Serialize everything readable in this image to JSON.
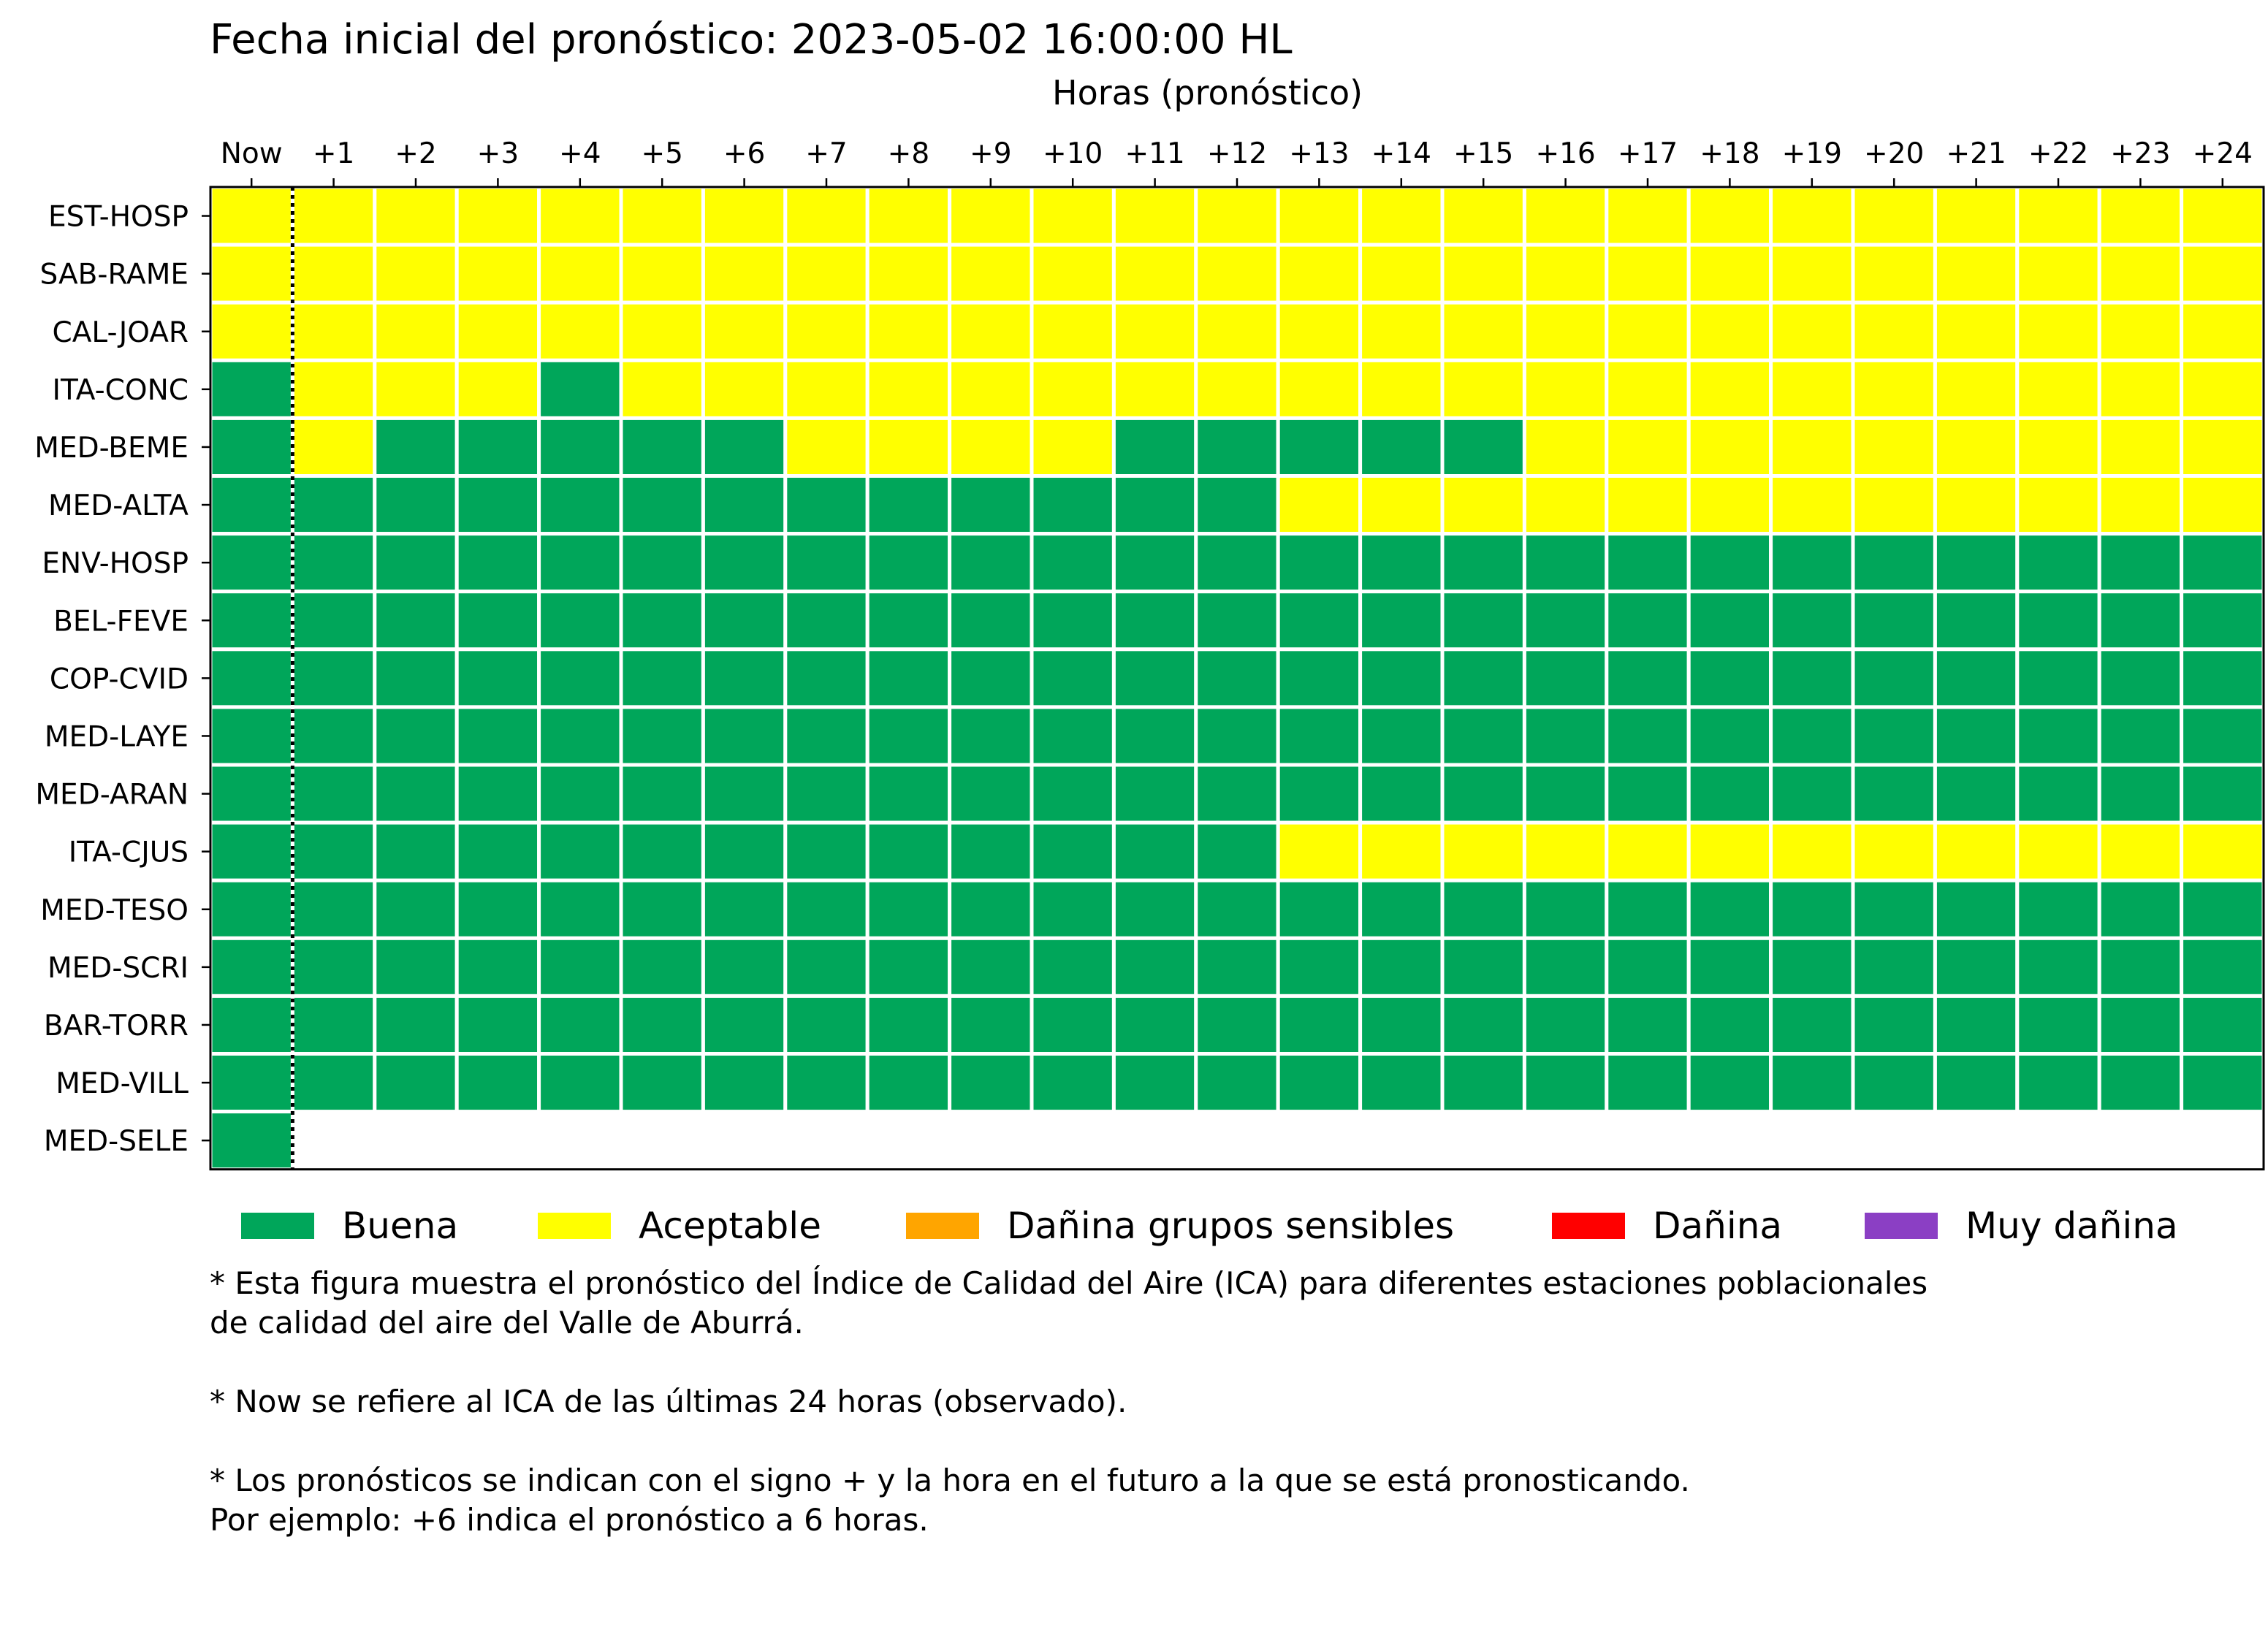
{
  "header": {
    "title": "Fecha inicial del pronóstico: 2023-05-02 16:00:00 HL",
    "xlabel": "Horas (pronóstico)"
  },
  "colors": {
    "Buena": "#00a65a",
    "Aceptable": "#ffff00",
    "Dañina grupos sensibles": "#ffa500",
    "Dañina": "#ff0000",
    "Muy dañina": "#8b3fc4"
  },
  "legend": {
    "items": [
      {
        "label": "Buena",
        "color": "#00a65a"
      },
      {
        "label": "Aceptable",
        "color": "#ffff00"
      },
      {
        "label": "Dañina grupos sensibles",
        "color": "#ffa500"
      },
      {
        "label": "Dañina",
        "color": "#ff0000"
      },
      {
        "label": "Muy dañina",
        "color": "#8b3fc4"
      }
    ]
  },
  "chart_data": {
    "type": "heatmap",
    "title": "Fecha inicial del pronóstico: 2023-05-02 16:00:00 HL",
    "xlabel": "Horas (pronóstico)",
    "ylabel": "",
    "x_tick_position": "top",
    "grid": false,
    "legend_position": "bottom",
    "columns": [
      "Now",
      "+1",
      "+2",
      "+3",
      "+4",
      "+5",
      "+6",
      "+7",
      "+8",
      "+9",
      "+10",
      "+11",
      "+12",
      "+13",
      "+14",
      "+15",
      "+16",
      "+17",
      "+18",
      "+19",
      "+20",
      "+21",
      "+22",
      "+23",
      "+24"
    ],
    "rows": [
      {
        "station": "EST-HOSP",
        "values": [
          "Aceptable",
          "Aceptable",
          "Aceptable",
          "Aceptable",
          "Aceptable",
          "Aceptable",
          "Aceptable",
          "Aceptable",
          "Aceptable",
          "Aceptable",
          "Aceptable",
          "Aceptable",
          "Aceptable",
          "Aceptable",
          "Aceptable",
          "Aceptable",
          "Aceptable",
          "Aceptable",
          "Aceptable",
          "Aceptable",
          "Aceptable",
          "Aceptable",
          "Aceptable",
          "Aceptable",
          "Aceptable"
        ]
      },
      {
        "station": "SAB-RAME",
        "values": [
          "Aceptable",
          "Aceptable",
          "Aceptable",
          "Aceptable",
          "Aceptable",
          "Aceptable",
          "Aceptable",
          "Aceptable",
          "Aceptable",
          "Aceptable",
          "Aceptable",
          "Aceptable",
          "Aceptable",
          "Aceptable",
          "Aceptable",
          "Aceptable",
          "Aceptable",
          "Aceptable",
          "Aceptable",
          "Aceptable",
          "Aceptable",
          "Aceptable",
          "Aceptable",
          "Aceptable",
          "Aceptable"
        ]
      },
      {
        "station": "CAL-JOAR",
        "values": [
          "Aceptable",
          "Aceptable",
          "Aceptable",
          "Aceptable",
          "Aceptable",
          "Aceptable",
          "Aceptable",
          "Aceptable",
          "Aceptable",
          "Aceptable",
          "Aceptable",
          "Aceptable",
          "Aceptable",
          "Aceptable",
          "Aceptable",
          "Aceptable",
          "Aceptable",
          "Aceptable",
          "Aceptable",
          "Aceptable",
          "Aceptable",
          "Aceptable",
          "Aceptable",
          "Aceptable",
          "Aceptable"
        ]
      },
      {
        "station": "ITA-CONC",
        "values": [
          "Buena",
          "Aceptable",
          "Aceptable",
          "Aceptable",
          "Buena",
          "Aceptable",
          "Aceptable",
          "Aceptable",
          "Aceptable",
          "Aceptable",
          "Aceptable",
          "Aceptable",
          "Aceptable",
          "Aceptable",
          "Aceptable",
          "Aceptable",
          "Aceptable",
          "Aceptable",
          "Aceptable",
          "Aceptable",
          "Aceptable",
          "Aceptable",
          "Aceptable",
          "Aceptable",
          "Aceptable"
        ]
      },
      {
        "station": "MED-BEME",
        "values": [
          "Buena",
          "Aceptable",
          "Buena",
          "Buena",
          "Buena",
          "Buena",
          "Buena",
          "Aceptable",
          "Aceptable",
          "Aceptable",
          "Aceptable",
          "Buena",
          "Buena",
          "Buena",
          "Buena",
          "Buena",
          "Aceptable",
          "Aceptable",
          "Aceptable",
          "Aceptable",
          "Aceptable",
          "Aceptable",
          "Aceptable",
          "Aceptable",
          "Aceptable"
        ]
      },
      {
        "station": "MED-ALTA",
        "values": [
          "Buena",
          "Buena",
          "Buena",
          "Buena",
          "Buena",
          "Buena",
          "Buena",
          "Buena",
          "Buena",
          "Buena",
          "Buena",
          "Buena",
          "Buena",
          "Aceptable",
          "Aceptable",
          "Aceptable",
          "Aceptable",
          "Aceptable",
          "Aceptable",
          "Aceptable",
          "Aceptable",
          "Aceptable",
          "Aceptable",
          "Aceptable",
          "Aceptable"
        ]
      },
      {
        "station": "ENV-HOSP",
        "values": [
          "Buena",
          "Buena",
          "Buena",
          "Buena",
          "Buena",
          "Buena",
          "Buena",
          "Buena",
          "Buena",
          "Buena",
          "Buena",
          "Buena",
          "Buena",
          "Buena",
          "Buena",
          "Buena",
          "Buena",
          "Buena",
          "Buena",
          "Buena",
          "Buena",
          "Buena",
          "Buena",
          "Buena",
          "Buena"
        ]
      },
      {
        "station": "BEL-FEVE",
        "values": [
          "Buena",
          "Buena",
          "Buena",
          "Buena",
          "Buena",
          "Buena",
          "Buena",
          "Buena",
          "Buena",
          "Buena",
          "Buena",
          "Buena",
          "Buena",
          "Buena",
          "Buena",
          "Buena",
          "Buena",
          "Buena",
          "Buena",
          "Buena",
          "Buena",
          "Buena",
          "Buena",
          "Buena",
          "Buena"
        ]
      },
      {
        "station": "COP-CVID",
        "values": [
          "Buena",
          "Buena",
          "Buena",
          "Buena",
          "Buena",
          "Buena",
          "Buena",
          "Buena",
          "Buena",
          "Buena",
          "Buena",
          "Buena",
          "Buena",
          "Buena",
          "Buena",
          "Buena",
          "Buena",
          "Buena",
          "Buena",
          "Buena",
          "Buena",
          "Buena",
          "Buena",
          "Buena",
          "Buena"
        ]
      },
      {
        "station": "MED-LAYE",
        "values": [
          "Buena",
          "Buena",
          "Buena",
          "Buena",
          "Buena",
          "Buena",
          "Buena",
          "Buena",
          "Buena",
          "Buena",
          "Buena",
          "Buena",
          "Buena",
          "Buena",
          "Buena",
          "Buena",
          "Buena",
          "Buena",
          "Buena",
          "Buena",
          "Buena",
          "Buena",
          "Buena",
          "Buena",
          "Buena"
        ]
      },
      {
        "station": "MED-ARAN",
        "values": [
          "Buena",
          "Buena",
          "Buena",
          "Buena",
          "Buena",
          "Buena",
          "Buena",
          "Buena",
          "Buena",
          "Buena",
          "Buena",
          "Buena",
          "Buena",
          "Buena",
          "Buena",
          "Buena",
          "Buena",
          "Buena",
          "Buena",
          "Buena",
          "Buena",
          "Buena",
          "Buena",
          "Buena",
          "Buena"
        ]
      },
      {
        "station": "ITA-CJUS",
        "values": [
          "Buena",
          "Buena",
          "Buena",
          "Buena",
          "Buena",
          "Buena",
          "Buena",
          "Buena",
          "Buena",
          "Buena",
          "Buena",
          "Buena",
          "Buena",
          "Aceptable",
          "Aceptable",
          "Aceptable",
          "Aceptable",
          "Aceptable",
          "Aceptable",
          "Aceptable",
          "Aceptable",
          "Aceptable",
          "Aceptable",
          "Aceptable",
          "Aceptable"
        ]
      },
      {
        "station": "MED-TESO",
        "values": [
          "Buena",
          "Buena",
          "Buena",
          "Buena",
          "Buena",
          "Buena",
          "Buena",
          "Buena",
          "Buena",
          "Buena",
          "Buena",
          "Buena",
          "Buena",
          "Buena",
          "Buena",
          "Buena",
          "Buena",
          "Buena",
          "Buena",
          "Buena",
          "Buena",
          "Buena",
          "Buena",
          "Buena",
          "Buena"
        ]
      },
      {
        "station": "MED-SCRI",
        "values": [
          "Buena",
          "Buena",
          "Buena",
          "Buena",
          "Buena",
          "Buena",
          "Buena",
          "Buena",
          "Buena",
          "Buena",
          "Buena",
          "Buena",
          "Buena",
          "Buena",
          "Buena",
          "Buena",
          "Buena",
          "Buena",
          "Buena",
          "Buena",
          "Buena",
          "Buena",
          "Buena",
          "Buena",
          "Buena"
        ]
      },
      {
        "station": "BAR-TORR",
        "values": [
          "Buena",
          "Buena",
          "Buena",
          "Buena",
          "Buena",
          "Buena",
          "Buena",
          "Buena",
          "Buena",
          "Buena",
          "Buena",
          "Buena",
          "Buena",
          "Buena",
          "Buena",
          "Buena",
          "Buena",
          "Buena",
          "Buena",
          "Buena",
          "Buena",
          "Buena",
          "Buena",
          "Buena",
          "Buena"
        ]
      },
      {
        "station": "MED-VILL",
        "values": [
          "Buena",
          "Buena",
          "Buena",
          "Buena",
          "Buena",
          "Buena",
          "Buena",
          "Buena",
          "Buena",
          "Buena",
          "Buena",
          "Buena",
          "Buena",
          "Buena",
          "Buena",
          "Buena",
          "Buena",
          "Buena",
          "Buena",
          "Buena",
          "Buena",
          "Buena",
          "Buena",
          "Buena",
          "Buena"
        ]
      },
      {
        "station": "MED-SELE",
        "values": [
          "Buena",
          null,
          null,
          null,
          null,
          null,
          null,
          null,
          null,
          null,
          null,
          null,
          null,
          null,
          null,
          null,
          null,
          null,
          null,
          null,
          null,
          null,
          null,
          null,
          null
        ]
      }
    ]
  },
  "notes": {
    "line1": "* Esta figura muestra el pronóstico del Índice de Calidad del Aire (ICA) para diferentes estaciones poblacionales",
    "line2": "de calidad del aire del Valle de Aburrá.",
    "line3": "* Now se refiere al ICA de las últimas 24 horas (observado).",
    "line4": "* Los pronósticos se indican con el signo + y la hora en el futuro a la que se está pronosticando.",
    "line5": "Por ejemplo: +6 indica el pronóstico a 6 horas."
  }
}
